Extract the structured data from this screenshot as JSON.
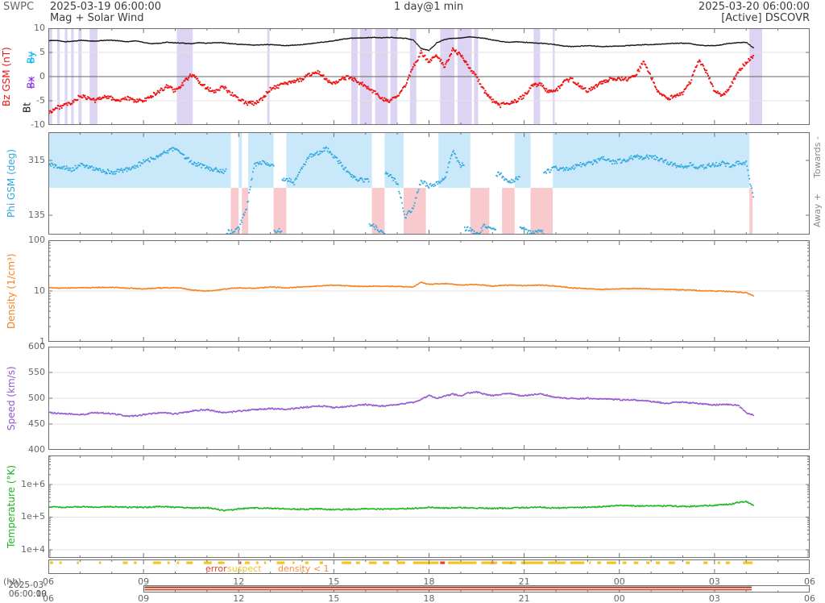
{
  "header": {
    "brand": "SWPC",
    "start_time": "2025-03-19 06:00:00",
    "cadence": "1 day@1 min",
    "end_time": "2025-03-20 06:00:00",
    "subtitle_left": "Mag + Solar Wind",
    "subtitle_right": "[Active] DSCOVR"
  },
  "xaxis": {
    "range": [
      6,
      30
    ],
    "unit_label": "(hh)",
    "ticks": [
      [
        6,
        "06"
      ],
      [
        9,
        "09"
      ],
      [
        12,
        "12"
      ],
      [
        15,
        "15"
      ],
      [
        18,
        "18"
      ],
      [
        21,
        "21"
      ],
      [
        24,
        "00"
      ],
      [
        27,
        "03"
      ],
      [
        30,
        "06"
      ]
    ]
  },
  "chart_data": [
    {
      "id": "mag",
      "type": "scatter",
      "ylabel": "Bz GSM (nT)",
      "extra_labels": {
        "by": "By",
        "bx": "Bx",
        "bt": "Bt"
      },
      "ylim": [
        -10,
        10
      ],
      "yticks": [
        [
          10,
          "10"
        ],
        [
          5,
          "5"
        ],
        [
          0,
          "0"
        ],
        [
          -5,
          "-5"
        ],
        [
          -10,
          "-10"
        ]
      ],
      "grid": [
        5,
        -5
      ],
      "zero": 0,
      "band_color": "#ddd3f2",
      "bands": [
        [
          6.0,
          6.12
        ],
        [
          6.28,
          6.36
        ],
        [
          6.52,
          6.6
        ],
        [
          6.72,
          6.8
        ],
        [
          6.95,
          7.05
        ],
        [
          7.3,
          7.55
        ],
        [
          10.05,
          10.55
        ],
        [
          12.9,
          12.97
        ],
        [
          15.55,
          15.75
        ],
        [
          15.82,
          16.2
        ],
        [
          16.3,
          16.7
        ],
        [
          16.78,
          17.0
        ],
        [
          17.4,
          17.6
        ],
        [
          18.35,
          18.8
        ],
        [
          18.9,
          19.35
        ],
        [
          19.42,
          19.55
        ],
        [
          21.3,
          21.5
        ],
        [
          21.9,
          21.96
        ],
        [
          28.1,
          28.5
        ]
      ],
      "series": [
        {
          "name": "Bt",
          "color": "#151515",
          "r": 0.8,
          "jitter": 0.12,
          "x0": 6,
          "dx": 0.25,
          "y": [
            7.4,
            7.5,
            7.2,
            7.3,
            7.5,
            7.4,
            7.3,
            7.5,
            7.5,
            7.4,
            7.2,
            7.4,
            7.1,
            6.8,
            6.9,
            7.1,
            7.0,
            6.9,
            6.8,
            7.0,
            6.9,
            7.0,
            7.0,
            6.8,
            6.7,
            6.6,
            6.5,
            6.6,
            6.6,
            6.5,
            6.4,
            6.5,
            6.6,
            6.8,
            7.0,
            7.2,
            7.4,
            7.7,
            7.9,
            8.0,
            8.0,
            8.1,
            8.0,
            8.1,
            8.0,
            7.9,
            7.6,
            5.8,
            5.4,
            7.0,
            7.7,
            7.9,
            8.0,
            8.2,
            8.1,
            7.9,
            7.6,
            7.3,
            7.1,
            7.2,
            7.1,
            7.0,
            6.9,
            6.8,
            6.6,
            6.3,
            6.2,
            6.3,
            6.4,
            6.3,
            6.2,
            6.3,
            6.3,
            6.4,
            6.5,
            6.6,
            6.6,
            6.7,
            6.8,
            6.9,
            6.9,
            6.8,
            6.5,
            6.4,
            6.4,
            6.6,
            6.9,
            7.0,
            7.1,
            5.8
          ]
        },
        {
          "name": "Bz",
          "color": "#f01212",
          "r": 1.1,
          "jitter": 0.8,
          "x0": 6,
          "dx": 0.25,
          "y": [
            -7.5,
            -6.5,
            -6.0,
            -5.5,
            -4.0,
            -4.5,
            -5.0,
            -4.0,
            -4.5,
            -5.0,
            -4.5,
            -5.0,
            -5.0,
            -4.0,
            -3.0,
            -2.0,
            -3.0,
            -1.5,
            0.5,
            -1.0,
            -2.5,
            -3.0,
            -2.0,
            -3.5,
            -4.5,
            -5.5,
            -5.5,
            -4.5,
            -2.5,
            -2.0,
            -1.5,
            -1.0,
            -0.5,
            0.5,
            1.0,
            -0.5,
            -1.5,
            -0.5,
            0.0,
            -1.0,
            -2.0,
            -3.0,
            -4.5,
            -5.0,
            -4.0,
            -2.0,
            2.0,
            5.0,
            3.0,
            4.5,
            2.0,
            5.5,
            4.5,
            2.0,
            0.0,
            -3.0,
            -5.0,
            -6.0,
            -5.5,
            -5.0,
            -4.0,
            -2.0,
            -1.5,
            -3.0,
            -3.0,
            -1.0,
            -0.5,
            -2.0,
            -3.0,
            -2.0,
            -1.0,
            -0.5,
            -0.5,
            -0.5,
            0.0,
            3.0,
            0.0,
            -3.5,
            -4.5,
            -4.0,
            -3.5,
            -1.0,
            3.5,
            1.0,
            -3.0,
            -4.0,
            -2.0,
            1.0,
            3.0,
            4.5
          ]
        }
      ]
    },
    {
      "id": "phi",
      "type": "scatter",
      "ylabel": "Phi GSM (deg)",
      "right_top": "Towards -",
      "right_bottom": "Away +",
      "ylim": [
        71.4,
        407.6
      ],
      "yticks": [
        [
          315,
          "315"
        ],
        [
          135,
          "135"
        ]
      ],
      "boundary": 225,
      "away_color": "#c9e8f9",
      "towards_color": "#f9cacd",
      "sectors": [
        [
          6,
          11.75,
          "away"
        ],
        [
          11.75,
          12.0,
          "towards"
        ],
        [
          12.0,
          12.1,
          "away"
        ],
        [
          12.1,
          12.3,
          "towards"
        ],
        [
          12.3,
          13.1,
          "away"
        ],
        [
          13.1,
          13.5,
          "towards"
        ],
        [
          13.5,
          16.2,
          "away"
        ],
        [
          16.2,
          16.6,
          "towards"
        ],
        [
          16.6,
          17.2,
          "away"
        ],
        [
          17.2,
          17.9,
          "towards"
        ],
        [
          17.9,
          18.3,
          "none"
        ],
        [
          18.3,
          19.3,
          "away"
        ],
        [
          19.3,
          19.9,
          "towards"
        ],
        [
          19.9,
          20.3,
          "none"
        ],
        [
          20.3,
          20.7,
          "towards"
        ],
        [
          20.7,
          21.2,
          "away"
        ],
        [
          21.2,
          21.9,
          "towards"
        ],
        [
          21.9,
          28.1,
          "away"
        ],
        [
          28.1,
          28.2,
          "towards"
        ],
        [
          28.2,
          30,
          "none"
        ]
      ],
      "series": [
        {
          "name": "Phi",
          "color": "#2fa8e0",
          "r": 1.0,
          "jitter": 15,
          "jump": 140,
          "x0": 6,
          "dx": 0.25,
          "y": [
            300,
            295,
            290,
            285,
            300,
            295,
            285,
            280,
            275,
            280,
            285,
            295,
            310,
            320,
            330,
            345,
            355,
            330,
            310,
            300,
            290,
            285,
            280,
            80,
            90,
            160,
            300,
            310,
            295,
            85,
            255,
            240,
            290,
            330,
            340,
            355,
            330,
            300,
            270,
            250,
            250,
            100,
            80,
            270,
            240,
            130,
            160,
            250,
            230,
            240,
            255,
            350,
            300,
            90,
            70,
            100,
            85,
            270,
            240,
            255,
            90,
            75,
            80,
            280,
            290,
            285,
            290,
            300,
            305,
            310,
            320,
            310,
            312,
            315,
            330,
            320,
            330,
            320,
            310,
            300,
            295,
            300,
            290,
            295,
            300,
            305,
            300,
            305,
            308,
            180
          ]
        }
      ]
    },
    {
      "id": "density",
      "type": "scatter",
      "ylabel": "Density (1/cm³)",
      "scale": "log",
      "ylim": [
        1,
        100
      ],
      "yticks": [
        [
          100,
          "100"
        ],
        [
          10,
          "10"
        ],
        [
          1,
          "1"
        ]
      ],
      "grid": [
        10
      ],
      "series": [
        {
          "name": "Density",
          "color": "#f5821f",
          "r": 0.9,
          "jitter": 0.015,
          "x0": 6,
          "dx": 0.25,
          "y": [
            11.5,
            11.5,
            11.4,
            11.5,
            11.5,
            11.6,
            11.7,
            11.8,
            11.8,
            11.6,
            11.4,
            11.2,
            11.0,
            11.2,
            11.5,
            11.5,
            11.5,
            11.3,
            10.5,
            10.2,
            10.0,
            10.3,
            10.8,
            11.2,
            11.5,
            11.4,
            11.3,
            11.6,
            12.0,
            11.8,
            11.5,
            11.8,
            12.0,
            12.3,
            12.5,
            12.8,
            13.0,
            12.8,
            12.5,
            12.4,
            12.3,
            12.4,
            12.5,
            12.4,
            12.3,
            12.1,
            12.0,
            14.8,
            13.5,
            13.8,
            14.0,
            13.5,
            13.0,
            13.3,
            13.5,
            13.0,
            12.5,
            12.8,
            13.0,
            12.9,
            12.8,
            12.9,
            13.0,
            12.8,
            12.5,
            12.0,
            11.5,
            11.3,
            11.0,
            10.9,
            10.8,
            10.9,
            11.0,
            11.1,
            11.2,
            11.1,
            11.0,
            10.9,
            10.8,
            10.7,
            10.5,
            10.4,
            10.2,
            10.1,
            10.0,
            9.9,
            9.8,
            9.5,
            9.2,
            8.0
          ]
        }
      ]
    },
    {
      "id": "speed",
      "type": "scatter",
      "ylabel": "Speed (km/s)",
      "ylim": [
        400,
        600
      ],
      "yticks": [
        [
          600,
          "600"
        ],
        [
          550,
          "550"
        ],
        [
          500,
          "500"
        ],
        [
          450,
          "450"
        ],
        [
          400,
          "400"
        ]
      ],
      "grid": [
        550,
        500,
        450
      ],
      "series": [
        {
          "name": "Speed",
          "color": "#9454d4",
          "r": 0.9,
          "jitter": 2.5,
          "x0": 6,
          "dx": 0.25,
          "y": [
            472,
            471,
            470,
            469,
            468,
            470,
            472,
            471,
            470,
            468,
            465,
            466,
            468,
            470,
            472,
            471,
            470,
            472,
            475,
            477,
            478,
            475,
            472,
            473,
            475,
            476,
            478,
            479,
            480,
            479,
            478,
            480,
            482,
            483,
            485,
            484,
            482,
            483,
            485,
            486,
            488,
            486,
            485,
            486,
            488,
            490,
            492,
            498,
            505,
            500,
            504,
            508,
            505,
            510,
            512,
            508,
            505,
            507,
            510,
            506,
            505,
            507,
            508,
            505,
            502,
            500,
            500,
            499,
            500,
            499,
            498,
            498,
            497,
            497,
            496,
            495,
            494,
            492,
            490,
            493,
            492,
            491,
            490,
            488,
            487,
            488,
            488,
            486,
            472,
            466
          ]
        }
      ]
    },
    {
      "id": "temperature",
      "type": "scatter",
      "ylabel": "Temperature (°K)",
      "scale": "log",
      "ylim": [
        5660,
        7740000
      ],
      "yticks": [
        [
          1000000,
          "1e+6"
        ],
        [
          100000,
          "1e+5"
        ],
        [
          10000,
          "1e+4"
        ]
      ],
      "grid": [
        1000000,
        100000,
        10000
      ],
      "series": [
        {
          "name": "Temperature",
          "color": "#1db41d",
          "r": 0.9,
          "jitter": 0.035,
          "x0": 6,
          "dx": 0.25,
          "y": [
            210000,
            205000,
            200000,
            205000,
            210000,
            205000,
            200000,
            205000,
            210000,
            205000,
            200000,
            202000,
            200000,
            205000,
            210000,
            205000,
            200000,
            198000,
            190000,
            192000,
            195000,
            180000,
            160000,
            165000,
            180000,
            185000,
            190000,
            188000,
            185000,
            183000,
            180000,
            178000,
            175000,
            178000,
            180000,
            175000,
            170000,
            172000,
            175000,
            178000,
            180000,
            178000,
            175000,
            178000,
            180000,
            182000,
            185000,
            192000,
            200000,
            195000,
            190000,
            192000,
            195000,
            193000,
            190000,
            188000,
            185000,
            187000,
            190000,
            192000,
            195000,
            198000,
            200000,
            195000,
            190000,
            192000,
            195000,
            198000,
            200000,
            205000,
            210000,
            220000,
            230000,
            225000,
            220000,
            222000,
            225000,
            222000,
            220000,
            218000,
            210000,
            215000,
            220000,
            225000,
            230000,
            240000,
            250000,
            280000,
            300000,
            220000
          ]
        }
      ]
    }
  ],
  "flags": {
    "error_label": "error",
    "suspect_label": "suspect",
    "density_label": "density < 1",
    "error": {
      "color": "#ee3b24",
      "bands": [
        [
          12.03,
          12.08
        ],
        [
          18.35,
          18.5
        ]
      ]
    },
    "suspect": {
      "color": "#f2c41d",
      "bands": [
        [
          6.05,
          6.15
        ],
        [
          6.35,
          6.42
        ],
        [
          6.9,
          6.96
        ],
        [
          7.6,
          7.66
        ],
        [
          8.35,
          8.5
        ],
        [
          8.7,
          8.78
        ],
        [
          9.3,
          9.55
        ],
        [
          9.75,
          9.82
        ],
        [
          10.05,
          10.12
        ],
        [
          10.35,
          10.55
        ],
        [
          10.9,
          11.15
        ],
        [
          11.35,
          11.55
        ],
        [
          12.2,
          12.35
        ],
        [
          12.55,
          12.62
        ],
        [
          12.8,
          12.86
        ],
        [
          13.2,
          13.45
        ],
        [
          13.7,
          13.76
        ],
        [
          14.1,
          14.2
        ],
        [
          14.55,
          14.66
        ],
        [
          15.25,
          15.55
        ],
        [
          15.7,
          15.82
        ],
        [
          16.1,
          16.35
        ],
        [
          16.55,
          16.75
        ],
        [
          17.0,
          17.25
        ],
        [
          17.5,
          18.3
        ],
        [
          18.6,
          19.5
        ],
        [
          19.65,
          20.15
        ],
        [
          20.3,
          20.75
        ],
        [
          20.9,
          21.6
        ],
        [
          21.75,
          22.3
        ],
        [
          22.45,
          22.9
        ],
        [
          23.05,
          23.1
        ],
        [
          23.3,
          23.42
        ],
        [
          23.6,
          23.9
        ],
        [
          24.1,
          24.22
        ],
        [
          24.45,
          24.6
        ],
        [
          24.85,
          24.95
        ],
        [
          25.15,
          25.28
        ],
        [
          25.55,
          25.75
        ],
        [
          26.1,
          26.22
        ],
        [
          26.65,
          26.78
        ],
        [
          27.1,
          27.18
        ],
        [
          27.35,
          27.48
        ],
        [
          27.9,
          28.2
        ]
      ]
    },
    "density_lt1": {
      "color": "#ff8a3c",
      "bands": [
        [
          19.95,
          20.05
        ],
        [
          20.55,
          20.62
        ]
      ]
    }
  },
  "availability": {
    "line1_color": "#8b2e10",
    "line2_color": "#cc4a22",
    "start_h": 6.0,
    "end_h": 28.17
  },
  "footer": {
    "date": "2025-03-19",
    "time": "06:00:00"
  },
  "colors": {
    "frame": "#707070",
    "grid": "#e2e2e2",
    "zero_line": "#666666",
    "tick_text": "#666666"
  }
}
